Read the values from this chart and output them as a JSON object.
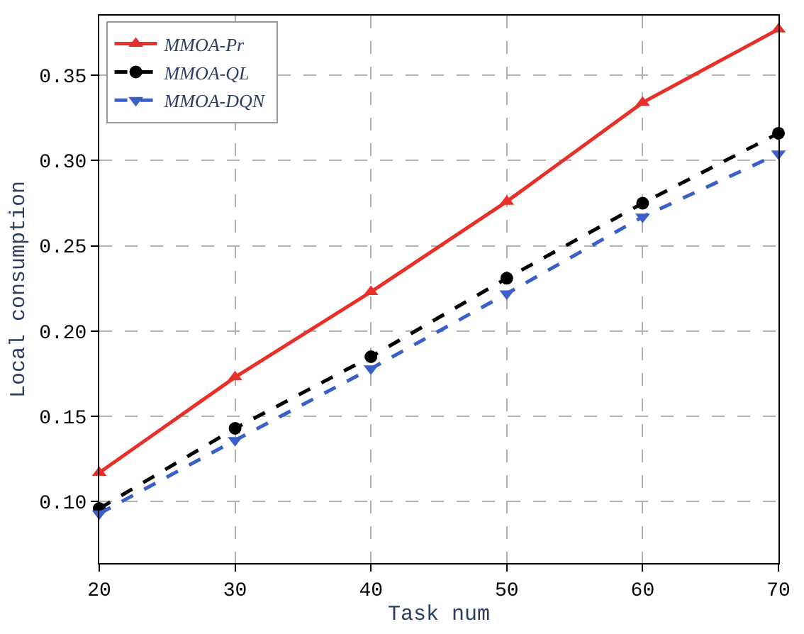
{
  "chart_data": {
    "type": "line",
    "xlabel": "Task num",
    "ylabel": "Local consumption",
    "x": [
      20,
      30,
      40,
      50,
      60,
      70
    ],
    "xlim": [
      20,
      70
    ],
    "xticks": [
      20,
      30,
      40,
      50,
      60,
      70
    ],
    "ylim": [
      0.064,
      0.385
    ],
    "yticks": [
      {
        "value": 0.1,
        "label": "0.10"
      },
      {
        "value": 0.15,
        "label": "0.15"
      },
      {
        "value": 0.2,
        "label": "0.20"
      },
      {
        "value": 0.25,
        "label": "0.25"
      },
      {
        "value": 0.3,
        "label": "0.30"
      },
      {
        "value": 0.35,
        "label": "0.35"
      }
    ],
    "grid": true,
    "legend": "top left",
    "series": [
      {
        "name": "MMOA-Pr",
        "color": "#e8302a",
        "marker": "triangle",
        "line_style": "solid",
        "values": [
          0.117,
          0.173,
          0.223,
          0.276,
          0.334,
          0.377
        ]
      },
      {
        "name": "MMOA-QL",
        "color": "#000000",
        "marker": "circle",
        "line_style": "dashed",
        "values": [
          0.096,
          0.143,
          0.185,
          0.231,
          0.275,
          0.316
        ]
      },
      {
        "name": "MMOA-DQN",
        "color": "#3a5fc8",
        "marker": "triangle-down",
        "line_style": "dashed",
        "values": [
          0.093,
          0.136,
          0.178,
          0.222,
          0.267,
          0.304
        ]
      }
    ]
  }
}
